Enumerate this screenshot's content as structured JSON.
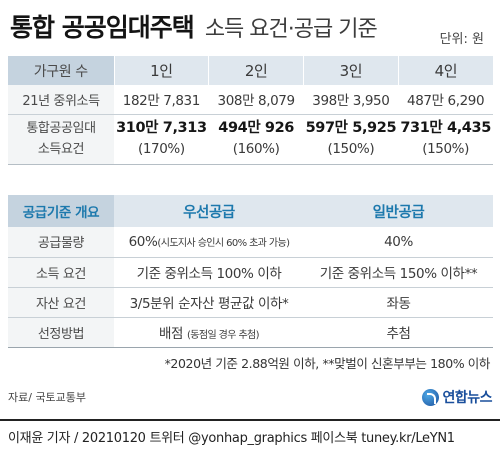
{
  "header": {
    "title_main": "통합 공공임대주택",
    "title_sub": "소득 요건·공급 기준",
    "unit": "단위: 원"
  },
  "income_table": {
    "header_label": "가구원 수",
    "columns": [
      "1인",
      "2인",
      "3인",
      "4인"
    ],
    "rows": [
      {
        "label": "21년 중위소득",
        "values": [
          "182만 7,831",
          "308만 8,079",
          "398만 3,950",
          "487만 6,290"
        ]
      },
      {
        "label_lines": [
          "통합공공임대",
          "소득요건"
        ],
        "values": [
          "310만 7,313",
          "494만 926",
          "597만 5,925",
          "731만 4,435"
        ],
        "percents": [
          "(170%)",
          "(160%)",
          "(150%)",
          "(150%)"
        ]
      }
    ]
  },
  "supply_table": {
    "header_label": "공급기준 개요",
    "columns": [
      "우선공급",
      "일반공급"
    ],
    "rows": [
      {
        "label": "공급물량",
        "priority_main": "60%",
        "priority_note": "(시도지사 승인시 60% 초과 가능)",
        "general": "40%"
      },
      {
        "label": "소득 요건",
        "priority_main": "기준 중위소득 100% 이하",
        "priority_note": "",
        "general": "기준 중위소득 150% 이하**"
      },
      {
        "label": "자산 요건",
        "priority_main": "3/5분위 순자산 평균값 이하*",
        "priority_note": "",
        "general": "좌동"
      },
      {
        "label": "선정방법",
        "priority_main": "배점",
        "priority_note": "(동점일 경우 추첨)",
        "general": "추첨"
      }
    ]
  },
  "footnote": "*2020년 기준 2.88억원 이하, **맞벌이 신혼부부는 180% 이하",
  "source": "자료/ 국토교통부",
  "logo_text": "연합뉴스",
  "credit": "이재윤 기자 / 20210120   트위터 @yonhap_graphics  페이스북 tuney.kr/LeYN1"
}
